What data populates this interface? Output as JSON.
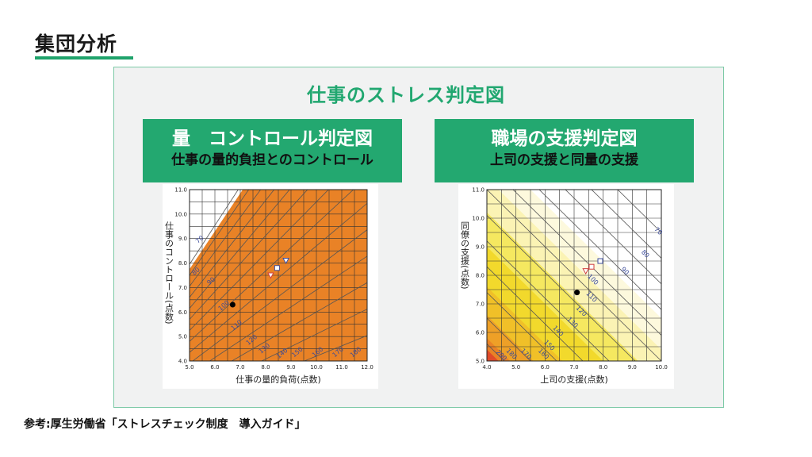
{
  "page": {
    "title": "集団分析",
    "main_title": "仕事のストレス判定図",
    "footer": "参考:厚生労働省「ストレスチェック制度　導入ガイド」"
  },
  "colors": {
    "accent": "#23a870",
    "title_text": "#21a770"
  },
  "chart_data": [
    {
      "type": "scatter",
      "header_title": "量　コントロール判定図",
      "header_subtitle": "仕事の量的負担とのコントロール",
      "xlabel": "仕事の量的負荷(点数)",
      "ylabel": "仕事のコントロール(点数)",
      "xlim": [
        5.0,
        12.0
      ],
      "ylim": [
        4.0,
        11.0
      ],
      "x_ticks": [
        "5.0",
        "6.0",
        "7.0",
        "8.0",
        "9.0",
        "10.0",
        "11.0",
        "12.0"
      ],
      "y_ticks": [
        "4.0",
        "5.0",
        "6.0",
        "7.0",
        "8.0",
        "9.0",
        "10.0",
        "11.0"
      ],
      "risk_labels": [
        {
          "text": "70",
          "x": 5.45,
          "y": 8.9
        },
        {
          "text": "80",
          "x": 5.3,
          "y": 7.6
        },
        {
          "text": "90",
          "x": 5.9,
          "y": 7.2
        },
        {
          "text": "100",
          "x": 6.4,
          "y": 6.2
        },
        {
          "text": "110",
          "x": 6.9,
          "y": 5.4
        },
        {
          "text": "120",
          "x": 7.5,
          "y": 4.8
        },
        {
          "text": "130",
          "x": 8.0,
          "y": 4.45
        },
        {
          "text": "140",
          "x": 8.7,
          "y": 4.25
        },
        {
          "text": "150",
          "x": 9.3,
          "y": 4.3
        },
        {
          "text": "160",
          "x": 10.1,
          "y": 4.3
        },
        {
          "text": "170",
          "x": 10.9,
          "y": 4.3
        },
        {
          "text": "180",
          "x": 11.6,
          "y": 4.3
        }
      ],
      "reference_points": [
        {
          "shape": "triangle",
          "x": 8.2,
          "y": 7.5,
          "color": "#d04040"
        },
        {
          "shape": "square",
          "x": 8.45,
          "y": 7.8,
          "color": "#4050a0"
        },
        {
          "shape": "triangle",
          "x": 8.8,
          "y": 8.1,
          "color": "#4050a0"
        }
      ],
      "group_point": {
        "x": 6.7,
        "y": 6.3
      }
    },
    {
      "type": "scatter",
      "header_title": "職場の支援判定図",
      "header_subtitle": "上司の支援と同量の支援",
      "xlabel": "上司の支援(点数)",
      "ylabel": "同僚の支援(点数)",
      "xlim": [
        4.0,
        10.0
      ],
      "ylim": [
        5.0,
        11.0
      ],
      "x_ticks": [
        "4.0",
        "5.0",
        "6.0",
        "7.0",
        "8.0",
        "9.0",
        "10.0"
      ],
      "y_ticks": [
        "5.0",
        "6.0",
        "7.0",
        "8.0",
        "9.0",
        "10.0",
        "11.0"
      ],
      "risk_labels": [
        {
          "text": "70",
          "x": 9.85,
          "y": 9.5
        },
        {
          "text": "80",
          "x": 9.4,
          "y": 8.7
        },
        {
          "text": "90",
          "x": 8.7,
          "y": 8.1
        },
        {
          "text": "100",
          "x": 7.6,
          "y": 7.8
        },
        {
          "text": "110",
          "x": 7.55,
          "y": 7.2
        },
        {
          "text": "120",
          "x": 7.2,
          "y": 6.7
        },
        {
          "text": "130",
          "x": 6.9,
          "y": 6.3
        },
        {
          "text": "140",
          "x": 6.4,
          "y": 6.0
        },
        {
          "text": "150",
          "x": 6.1,
          "y": 5.5
        },
        {
          "text": "160",
          "x": 5.9,
          "y": 5.2
        },
        {
          "text": "170",
          "x": 5.3,
          "y": 5.2
        },
        {
          "text": "180",
          "x": 4.8,
          "y": 5.2
        },
        {
          "text": "200",
          "x": 4.45,
          "y": 5.15
        }
      ],
      "reference_points": [
        {
          "shape": "triangle",
          "x": 7.4,
          "y": 8.15,
          "color": "#d04040"
        },
        {
          "shape": "square",
          "x": 7.6,
          "y": 8.3,
          "color": "#d04040"
        },
        {
          "shape": "square",
          "x": 7.9,
          "y": 8.5,
          "color": "#4050a0"
        }
      ],
      "group_point": {
        "x": 7.1,
        "y": 7.4
      }
    }
  ]
}
